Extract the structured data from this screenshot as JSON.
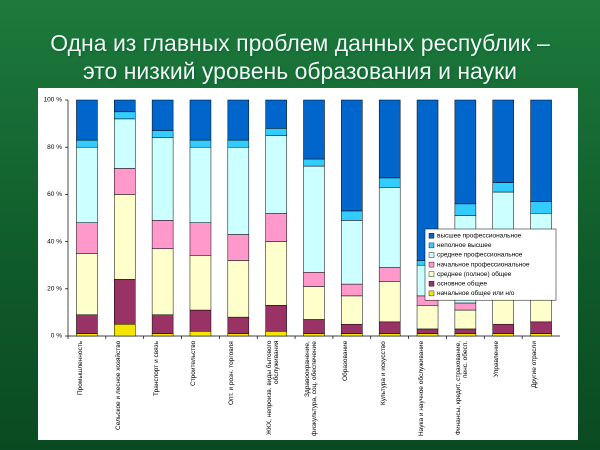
{
  "chart_data": {
    "type": "stacked_bar",
    "title": [
      "Одна из главных проблем данных республик –",
      "это низкий уровень образования и науки"
    ],
    "categories": [
      "Промышленность",
      "Сельское и лесное хозяйство",
      "Транспорт и связь",
      "Строительство",
      "Опт. и розн. торговля",
      "ЖКХ, непроизв. виды бытового обслуживания",
      "Здравоохранение, физкультура, соц. обеспечение",
      "Образование",
      "Культура и искусство",
      "Наука и научное обслуживание",
      "Финансы, кредит, страхование, пенс. обесп.",
      "Управление",
      "Другие отрасли"
    ],
    "series": [
      {
        "name": "начальное общее или н/о",
        "color": "#f2e600",
        "values": [
          1,
          5,
          1,
          2,
          1,
          2,
          1,
          1,
          1,
          1,
          1,
          1,
          1
        ]
      },
      {
        "name": "основное общее",
        "color": "#993366",
        "values": [
          8,
          19,
          8,
          9,
          7,
          11,
          6,
          4,
          5,
          2,
          2,
          4,
          5
        ]
      },
      {
        "name": "среднее (полное) общее",
        "color": "#ffffcc",
        "values": [
          26,
          36,
          28,
          23,
          24,
          27,
          14,
          12,
          17,
          10,
          8,
          14,
          13
        ]
      },
      {
        "name": "начальное профессиональное",
        "color": "#ff99cc",
        "values": [
          13,
          11,
          12,
          14,
          11,
          12,
          6,
          5,
          6,
          4,
          3,
          3,
          6
        ]
      },
      {
        "name": "среднее профессиональное",
        "color": "#ccffff",
        "values": [
          32,
          21,
          35,
          32,
          37,
          33,
          45,
          27,
          34,
          13,
          37,
          39,
          27
        ]
      },
      {
        "name": "неполное высшее",
        "color": "#33ccff",
        "values": [
          3,
          3,
          3,
          3,
          3,
          3,
          3,
          4,
          4,
          2,
          5,
          4,
          5
        ]
      },
      {
        "name": "высшее профессиональное",
        "color": "#0066cc",
        "values": [
          17,
          5,
          13,
          17,
          17,
          12,
          25,
          47,
          33,
          68,
          44,
          35,
          43
        ]
      }
    ],
    "ylim": [
      0,
      100
    ],
    "yticks": [
      {
        "value": 0,
        "label": "0 %"
      },
      {
        "value": 20,
        "label": "20 %"
      },
      {
        "value": 40,
        "label": "40 %"
      },
      {
        "value": 60,
        "label": "60 %"
      },
      {
        "value": 80,
        "label": "80 %"
      },
      {
        "value": 100,
        "label": "100 %"
      }
    ],
    "grid": false,
    "legend": "right"
  }
}
